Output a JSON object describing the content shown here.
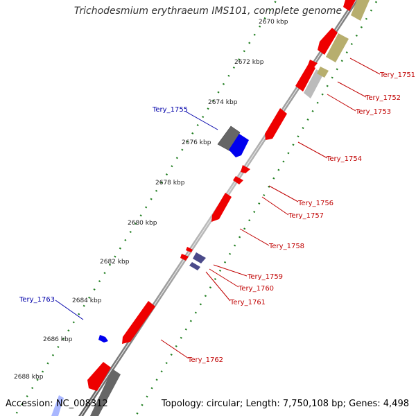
{
  "title": "Trichodesmium erythraeum IMS101, complete genome",
  "accession": "Accession: NC_008312",
  "summary": "Topology: circular; Length: 7,750,108 bp; Genes: 4,498",
  "colors": {
    "backbone": "#8c8c8c",
    "tick": "#1e7d1e",
    "gene_red": "#ee0000",
    "gene_blue": "#0000ee",
    "gene_gray": "#666666",
    "gene_olive": "#b7ae6e",
    "gene_navy": "#4a4a8a",
    "label_red": "#c00000",
    "label_blue": "#0000aa"
  },
  "kbp_labels": [
    "2670 kbp",
    "2672 kbp",
    "2674 kbp",
    "2676 kbp",
    "2678 kbp",
    "2680 kbp",
    "2682 kbp",
    "2684 kbp",
    "2686 kbp",
    "2688 kbp"
  ],
  "gene_labels": [
    "Tery_1751",
    "Tery_1752",
    "Tery_1753",
    "Tery_1754",
    "Tery_1755",
    "Tery_1756",
    "Tery_1757",
    "Tery_1758",
    "Tery_1759",
    "Tery_1760",
    "Tery_1761",
    "Tery_1762",
    "Tery_1763"
  ]
}
